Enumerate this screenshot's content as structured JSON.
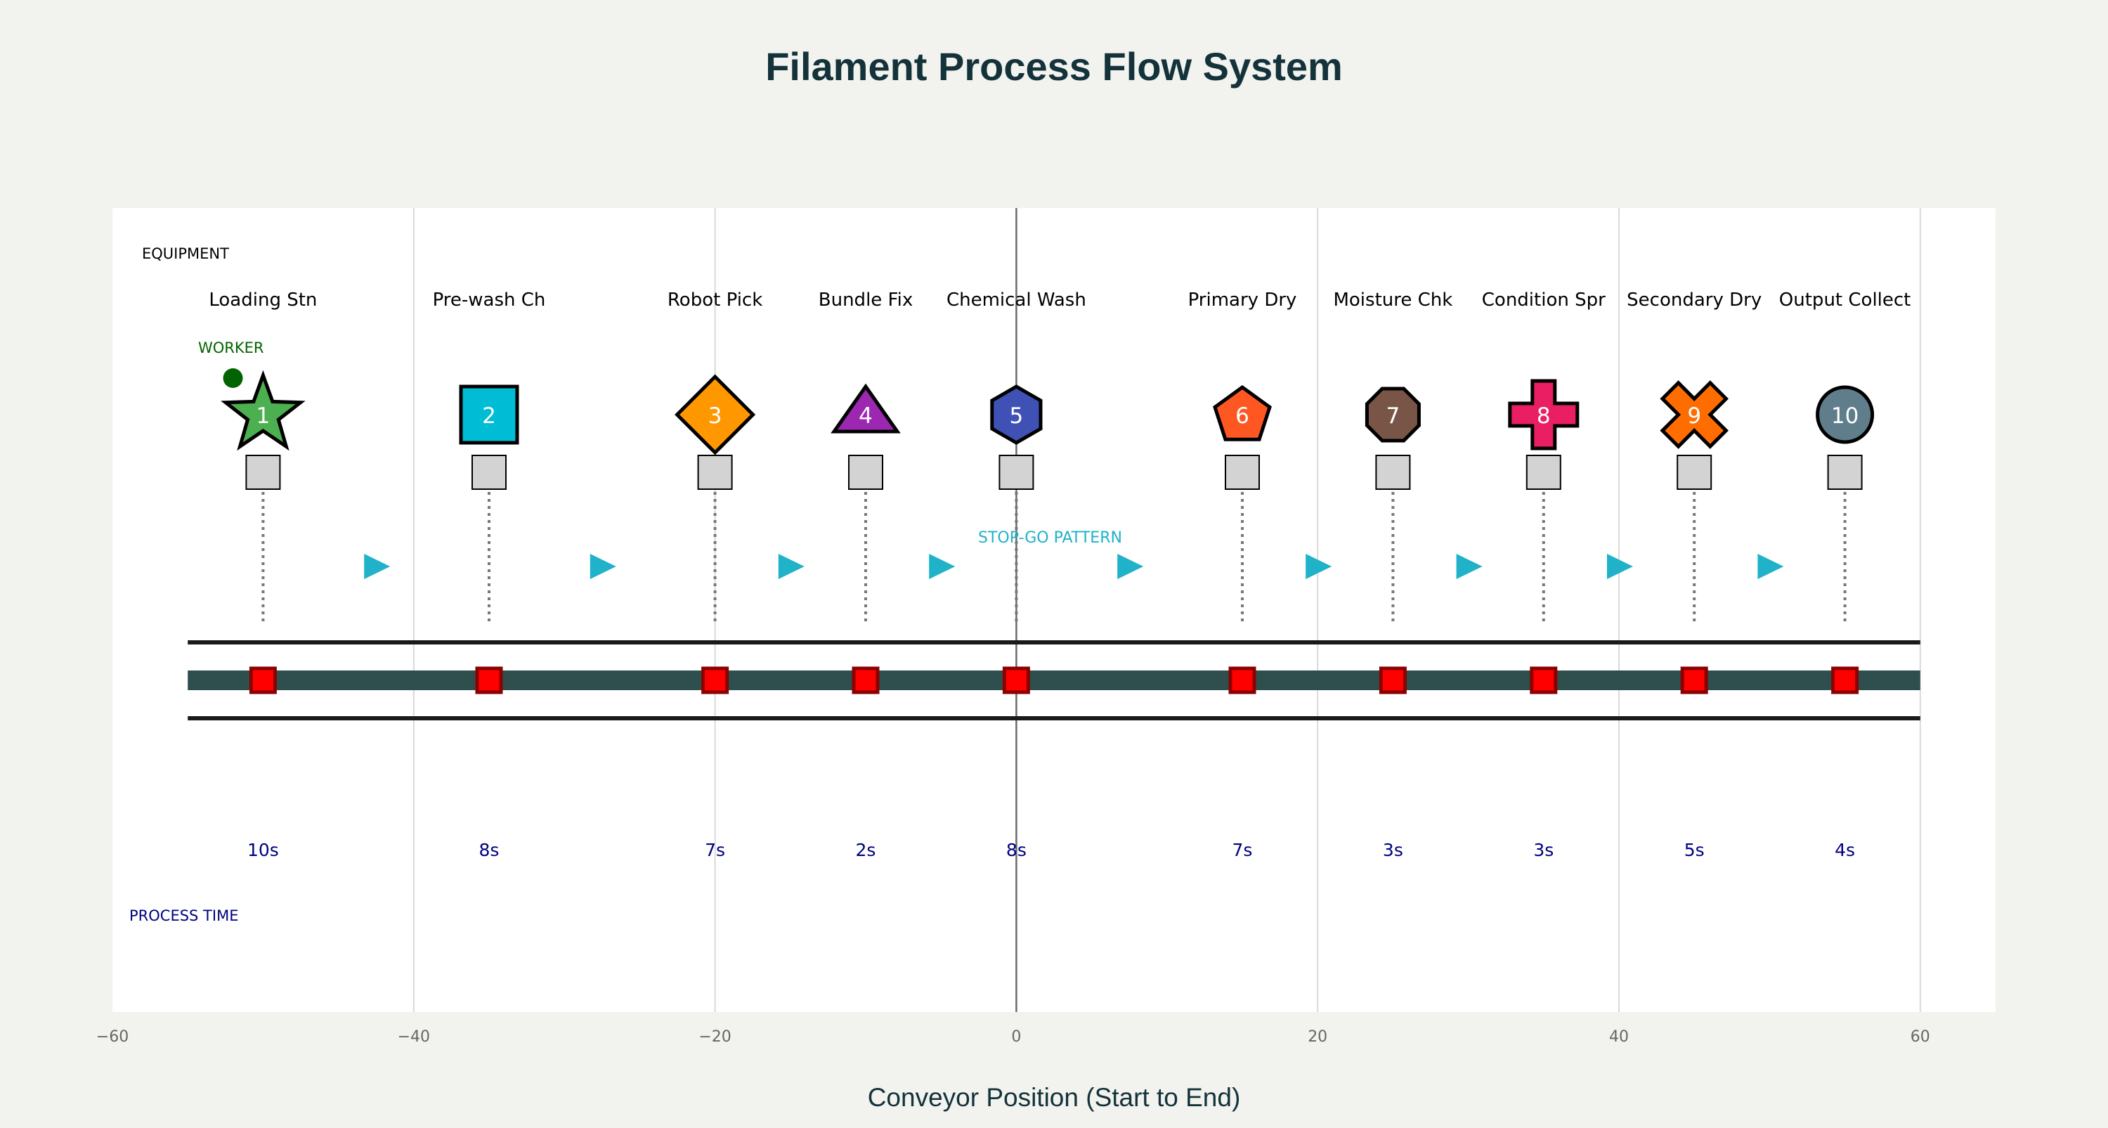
{
  "chart_data": {
    "type": "scatter",
    "title": "Filament Process Flow System",
    "xlabel": "Conveyor Position (Start to End)",
    "xlim": [
      -60,
      65
    ],
    "x_ticks": [
      -60,
      -40,
      -20,
      0,
      20,
      40,
      60
    ],
    "x_tick_labels": [
      "−60",
      "−40",
      "−20",
      "0",
      "20",
      "40",
      "60"
    ],
    "grid": true,
    "zero_line": 0,
    "labels": {
      "equipment": "EQUIPMENT",
      "worker": "WORKER",
      "stop_go": "STOP-GO PATTERN",
      "process_time": "PROCESS TIME"
    },
    "conveyor": {
      "start": -55,
      "end": 60
    },
    "flow_arrows_x": [
      -42.5,
      -27.5,
      -15,
      -5,
      7.5,
      20,
      30,
      40,
      50
    ],
    "worker_x": -52,
    "stations": [
      {
        "x": -50,
        "number": "1",
        "name": "Loading Stn",
        "time": "10s",
        "shape": "star",
        "color": "#4caf50"
      },
      {
        "x": -35,
        "number": "2",
        "name": "Pre-wash Ch",
        "time": "8s",
        "shape": "square",
        "color": "#00bcd4"
      },
      {
        "x": -20,
        "number": "3",
        "name": "Robot Pick",
        "time": "7s",
        "shape": "diamond",
        "color": "#ff9800"
      },
      {
        "x": -10,
        "number": "4",
        "name": "Bundle Fix",
        "time": "2s",
        "shape": "triangle",
        "color": "#9c27b0"
      },
      {
        "x": 0,
        "number": "5",
        "name": "Chemical Wash",
        "time": "8s",
        "shape": "hexagon",
        "color": "#3f51b5"
      },
      {
        "x": 15,
        "number": "6",
        "name": "Primary Dry",
        "time": "7s",
        "shape": "pentagon",
        "color": "#ff5722"
      },
      {
        "x": 25,
        "number": "7",
        "name": "Moisture Chk",
        "time": "3s",
        "shape": "octagon",
        "color": "#795548"
      },
      {
        "x": 35,
        "number": "8",
        "name": "Condition Spr",
        "time": "3s",
        "shape": "cross",
        "color": "#e91e63"
      },
      {
        "x": 45,
        "number": "9",
        "name": "Secondary Dry",
        "time": "5s",
        "shape": "x",
        "color": "#ff6d00"
      },
      {
        "x": 55,
        "number": "10",
        "name": "Output Collect",
        "time": "4s",
        "shape": "circle",
        "color": "#607d8b"
      }
    ],
    "colors": {
      "title": "#13323a",
      "belt": "#2f4f4f",
      "rail": "#1a1a1a",
      "carrier": "#ff0000",
      "carrier_edge": "#8b0000",
      "arrow": "#1fb2c9",
      "worker": "#006400",
      "process_time": "#000080",
      "panel": "#ffffff",
      "grid": "#d9d9d9",
      "zero_line": "#6b6b6b",
      "sensor": "#d3d3d3"
    }
  }
}
